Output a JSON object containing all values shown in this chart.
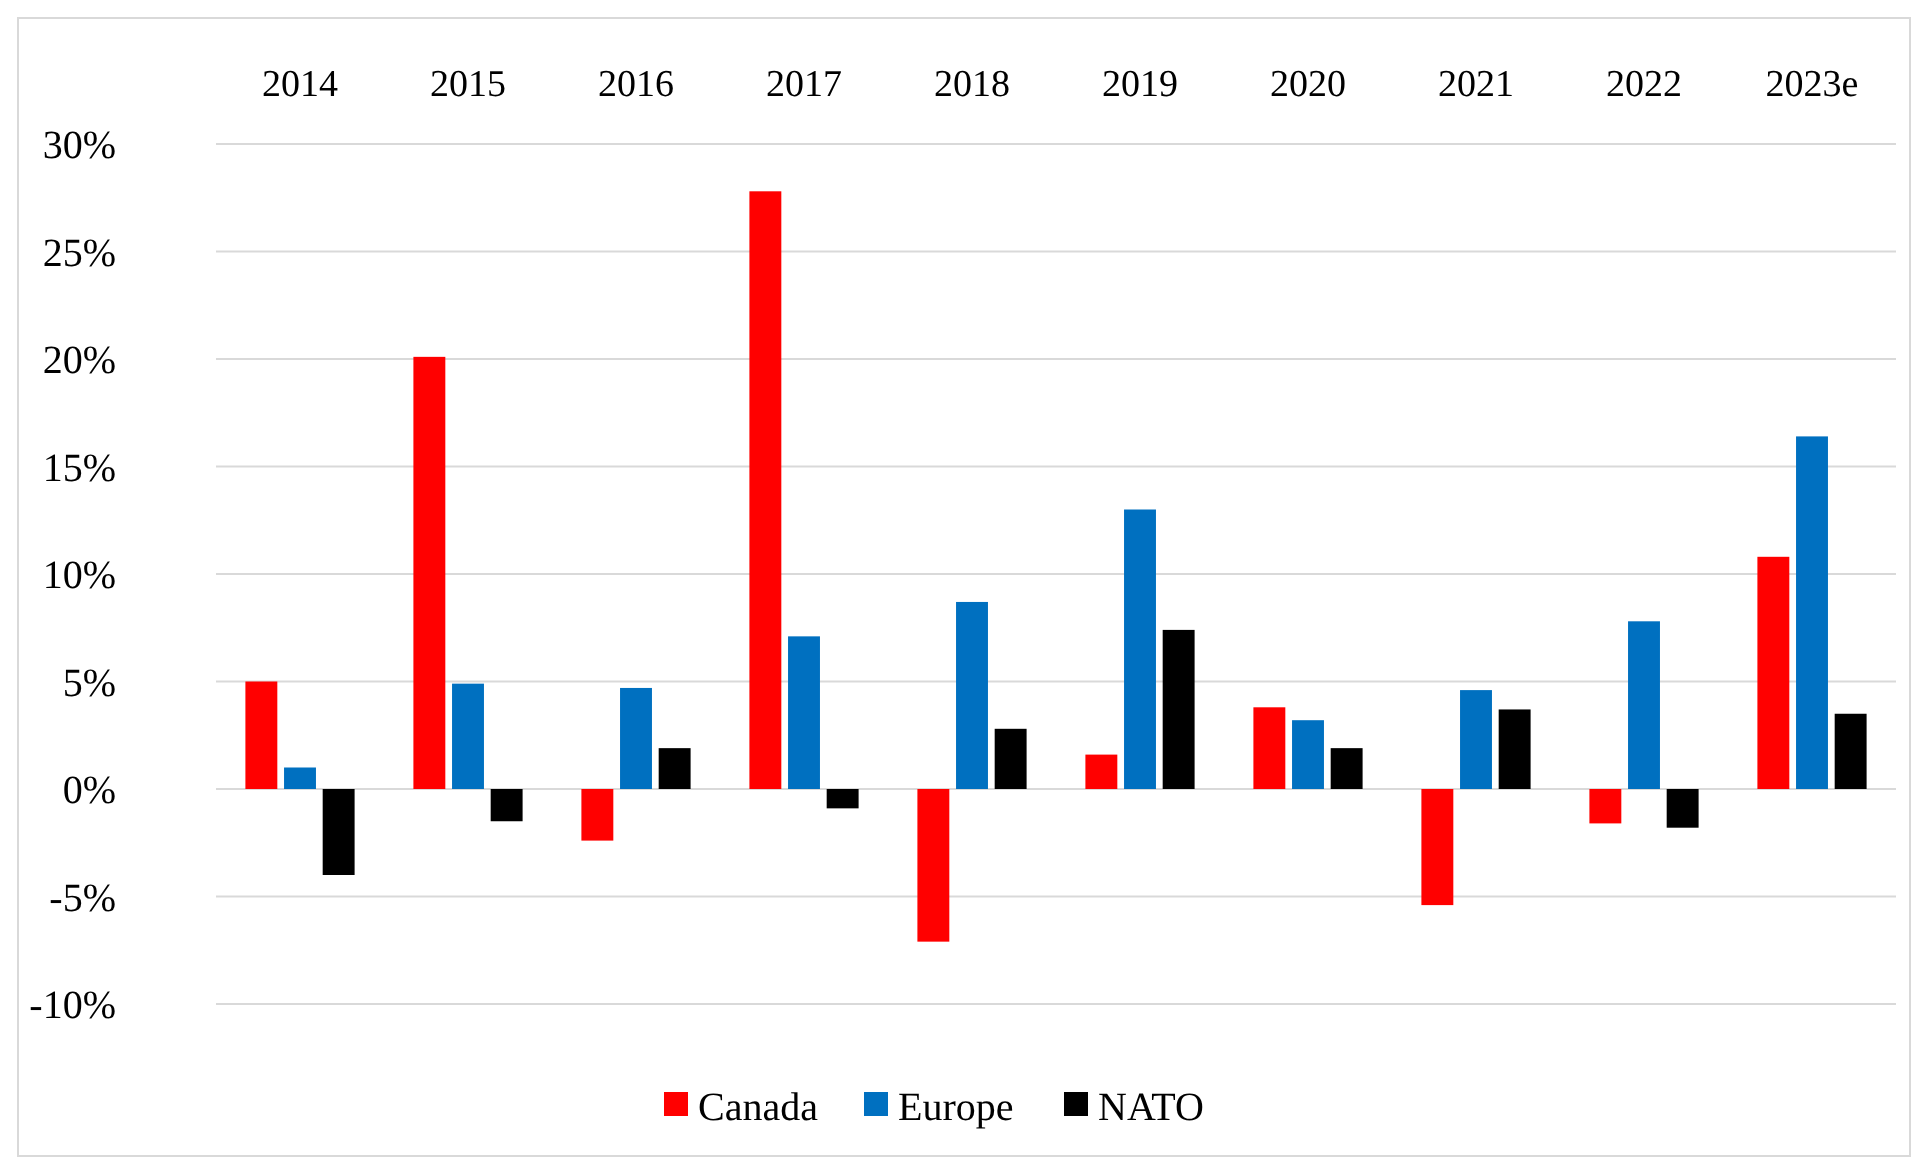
{
  "chart_data": {
    "type": "bar",
    "categories": [
      "2014",
      "2015",
      "2016",
      "2017",
      "2018",
      "2019",
      "2020",
      "2021",
      "2022",
      "2023e"
    ],
    "series": [
      {
        "name": "Canada",
        "color": "#ff0000",
        "values": [
          5.0,
          20.1,
          -2.4,
          27.8,
          -7.1,
          1.6,
          3.8,
          -5.4,
          -1.6,
          10.8
        ]
      },
      {
        "name": "Europe",
        "color": "#0070c0",
        "values": [
          1.0,
          4.9,
          4.7,
          7.1,
          8.7,
          13.0,
          3.2,
          4.6,
          7.8,
          16.4
        ]
      },
      {
        "name": "NATO",
        "color": "#000000",
        "values": [
          -4.0,
          -1.5,
          1.9,
          -0.9,
          2.8,
          7.4,
          1.9,
          3.7,
          -1.8,
          3.5
        ]
      }
    ],
    "ylim": [
      -10,
      30
    ],
    "yticks": [
      {
        "value": -10,
        "label": "-10%"
      },
      {
        "value": -5,
        "label": "-5%"
      },
      {
        "value": 0,
        "label": "0%"
      },
      {
        "value": 5,
        "label": "5%"
      },
      {
        "value": 10,
        "label": "10%"
      },
      {
        "value": 15,
        "label": "15%"
      },
      {
        "value": 20,
        "label": "20%"
      },
      {
        "value": 25,
        "label": "25%"
      },
      {
        "value": 30,
        "label": "30%"
      }
    ],
    "grid": "y",
    "legend": "bottom"
  }
}
